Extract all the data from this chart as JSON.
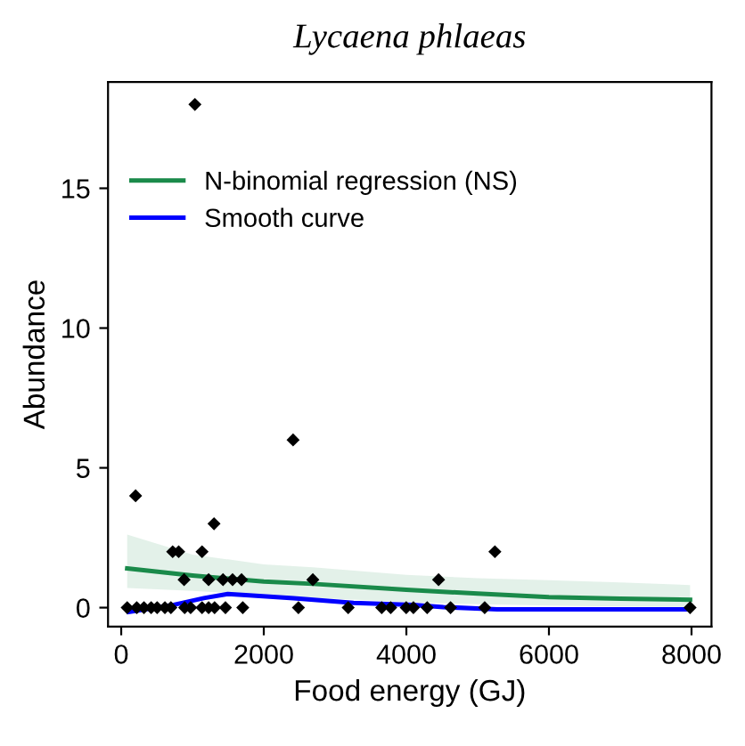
{
  "chart_data": {
    "type": "scatter",
    "title": "Lycaena phlaeas",
    "xlabel": "Food energy (GJ)",
    "ylabel": "Abundance",
    "xlim": [
      -185,
      8280
    ],
    "ylim": [
      -0.68,
      18.8
    ],
    "xticks": [
      0,
      2000,
      4000,
      6000,
      8000
    ],
    "yticks": [
      0,
      5,
      10,
      15
    ],
    "grid": false,
    "legend": "top left",
    "series": [
      {
        "marker": "diamond",
        "color": "#000000",
        "x": [
          84,
          218,
          319,
          420,
          504,
          613,
          697,
          890,
          974,
          1134,
          1226,
          1310,
          1462,
          1705,
          2486,
          3184,
          3654,
          3780,
          3998,
          4099,
          4292,
          4620,
          5099,
          7980,
          1034,
          202,
          2411,
          1302,
          722,
          806,
          1134,
          5242,
          882,
          1226,
          1428,
          1562,
          1688,
          2688,
          4452
        ],
        "values": [
          0,
          0,
          0,
          0,
          0,
          0,
          0,
          0,
          0,
          0,
          0,
          0,
          0,
          0,
          0,
          0,
          0,
          0,
          0,
          0,
          0,
          0,
          0,
          0,
          18,
          4,
          6,
          3,
          2,
          2,
          2,
          2,
          1,
          1,
          1,
          1,
          1,
          1,
          1
        ]
      },
      {
        "type": "line",
        "name": "N-binomial regression (NS)",
        "color": "#1a8a4a",
        "x": [
          84,
          1000,
          2000,
          2688,
          4000,
          5000,
          6000,
          7000,
          7980
        ],
        "values": [
          1.4,
          1.15,
          0.93,
          0.85,
          0.64,
          0.5,
          0.38,
          0.32,
          0.28
        ],
        "lower": [
          0.7,
          0.6,
          0.45,
          0.35,
          0.2,
          0.12,
          0.07,
          0.04,
          0.02
        ],
        "upper": [
          2.61,
          1.9,
          1.55,
          1.44,
          1.17,
          1.05,
          0.98,
          0.9,
          0.81
        ]
      },
      {
        "type": "line",
        "name": "Smooth curve",
        "color": "#0000ff",
        "x": [
          109,
          739,
          1159,
          1495,
          1747,
          2419,
          3259,
          4099,
          4519,
          5275,
          7980
        ],
        "values": [
          -0.15,
          0.1,
          0.34,
          0.49,
          0.45,
          0.34,
          0.17,
          0.1,
          0.02,
          -0.06,
          -0.06
        ]
      }
    ]
  }
}
